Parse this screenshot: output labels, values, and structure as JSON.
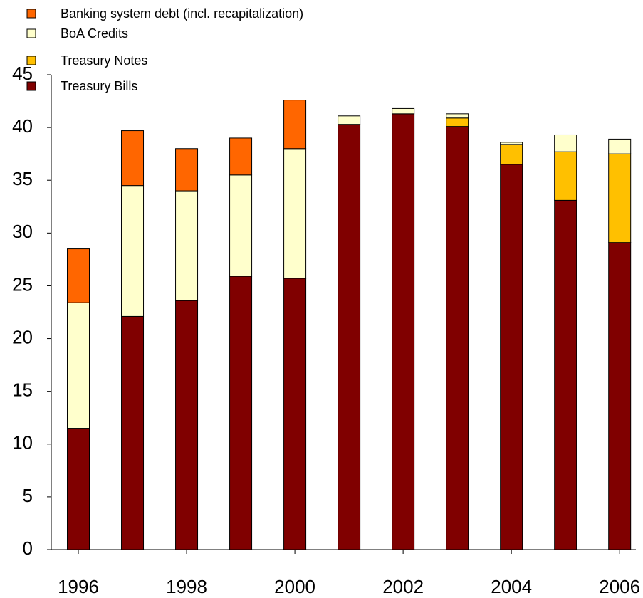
{
  "chart_data": {
    "type": "stacked_bar",
    "x": [
      1996,
      1997,
      1998,
      1999,
      2000,
      2001,
      2002,
      2003,
      2004,
      2005,
      2006
    ],
    "series": [
      {
        "name": "Treasury Bills",
        "color": "#800000",
        "values": [
          11.5,
          22.1,
          23.6,
          25.9,
          25.7,
          40.3,
          41.3,
          40.1,
          36.5,
          33.1,
          29.1
        ]
      },
      {
        "name": "Treasury Notes",
        "color": "#ffc000",
        "values": [
          0,
          0,
          0,
          0,
          0,
          0,
          0,
          0.8,
          1.9,
          4.6,
          8.4
        ]
      },
      {
        "name": "BoA Credits",
        "color": "#ffffcc",
        "values": [
          11.9,
          12.4,
          10.4,
          9.6,
          12.3,
          0.8,
          0.5,
          0.4,
          0.2,
          1.6,
          1.4
        ]
      },
      {
        "name": "Banking system debt (incl. recapitalization)",
        "color": "#ff6600",
        "values": [
          5.1,
          5.2,
          4.0,
          3.5,
          4.6,
          0,
          0,
          0,
          0,
          0,
          0
        ]
      }
    ],
    "xlim": [
      1995.5,
      2006.3
    ],
    "xticks": [
      1996,
      1998,
      2000,
      2002,
      2004,
      2006
    ],
    "ylim": [
      0,
      45
    ],
    "yticks": [
      0,
      5,
      10,
      15,
      20,
      25,
      30,
      35,
      40,
      45
    ]
  }
}
